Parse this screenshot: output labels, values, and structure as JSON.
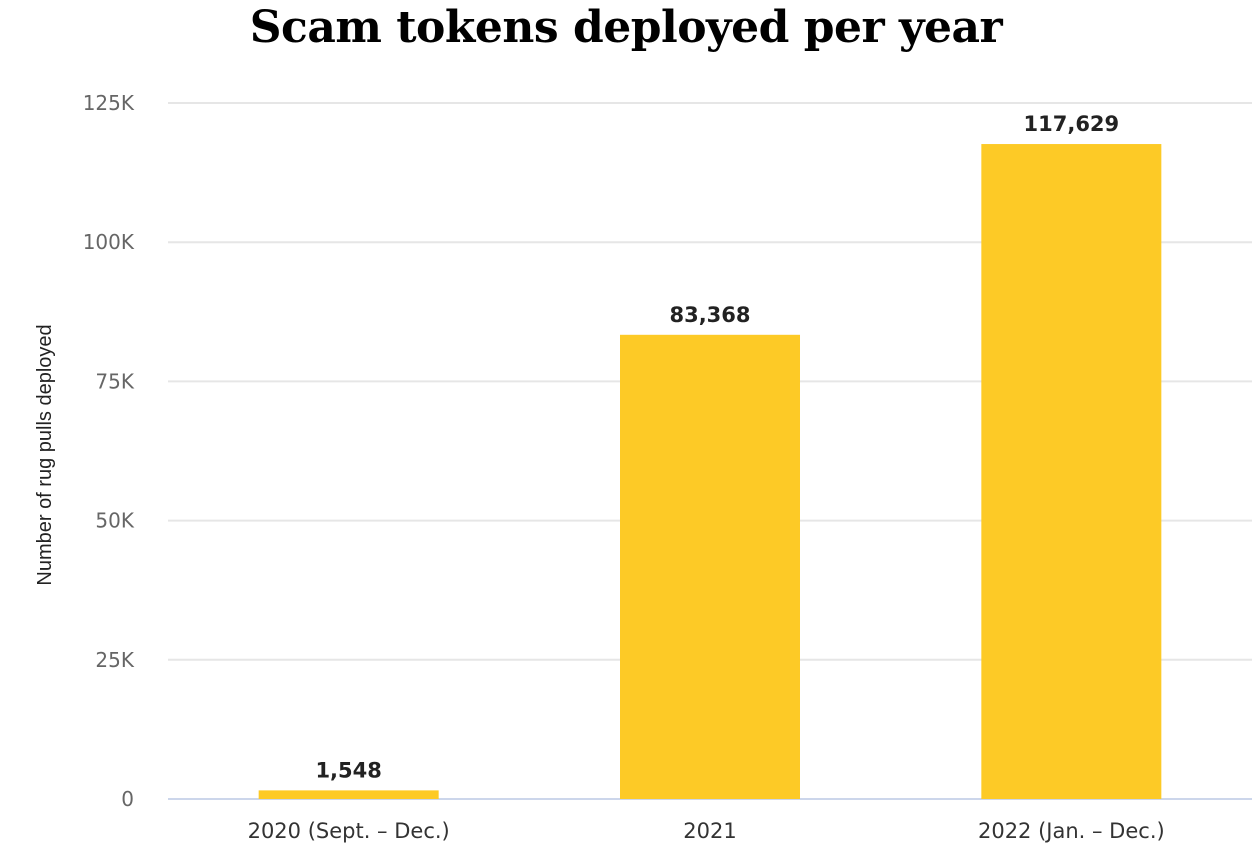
{
  "chart_data": {
    "type": "bar",
    "title": "Scam tokens deployed per year",
    "xlabel": "",
    "ylabel": "Number of rug pulls deployed",
    "categories": [
      "2020 (Sept. – Dec.)",
      "2021",
      "2022 (Jan. – Dec.)"
    ],
    "values": [
      1548,
      83368,
      117629
    ],
    "data_labels": [
      "1,548",
      "83,368",
      "117,629"
    ],
    "ylim": [
      0,
      125000
    ],
    "yticks": [
      0,
      25000,
      50000,
      75000,
      100000,
      125000
    ],
    "ytick_labels": [
      "0",
      "25K",
      "50K",
      "75K",
      "100K",
      "125K"
    ],
    "grid": true,
    "legend": "none",
    "colors": {
      "bar": "#FDCA26",
      "grid": "#e6e6e6",
      "baseline": "#ccd6eb"
    }
  }
}
